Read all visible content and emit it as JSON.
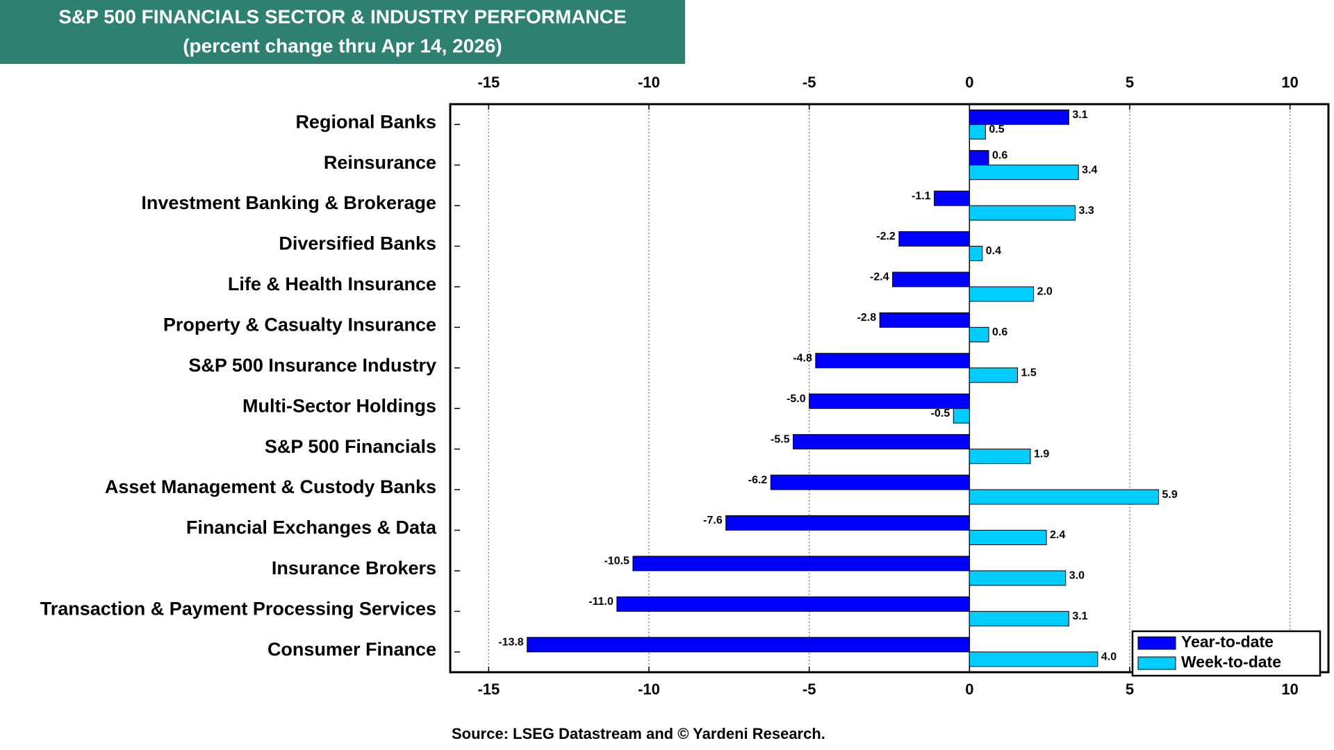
{
  "chart_data": {
    "type": "hbar",
    "title": "S&P 500 FINANCIALS SECTOR & INDUSTRY PERFORMANCE",
    "subtitle": "(percent change thru Apr 14, 2026)",
    "source": "Source: LSEG Datastream and © Yardeni Research.",
    "categories": [
      "Regional Banks",
      "Reinsurance",
      "Investment Banking & Brokerage",
      "Diversified Banks",
      "Life & Health Insurance",
      "Property & Casualty Insurance",
      "S&P 500 Insurance Industry",
      "Multi-Sector Holdings",
      "S&P 500 Financials",
      "Asset Management & Custody Banks",
      "Financial Exchanges & Data",
      "Insurance Brokers",
      "Transaction & Payment Processing Services",
      "Consumer Finance"
    ],
    "series": [
      {
        "name": "Year-to-date",
        "color": "#0000ff",
        "values": [
          3.1,
          0.6,
          -1.1,
          -2.2,
          -2.4,
          -2.8,
          -4.8,
          -5.0,
          -5.5,
          -6.2,
          -7.6,
          -10.5,
          -11.0,
          -13.8
        ],
        "value_labels": [
          "3.1",
          "0.6",
          "-1.1",
          "-2.2",
          "-2.4",
          "-2.8",
          "-4.8",
          "-5.0",
          "-5.5",
          "-6.2",
          "-7.6",
          "-10.5",
          "-11.0",
          "-13.8"
        ]
      },
      {
        "name": "Week-to-date",
        "color": "#00ccff",
        "values": [
          0.5,
          3.4,
          3.3,
          0.4,
          2.0,
          0.6,
          1.5,
          -0.5,
          1.9,
          5.9,
          2.4,
          3.0,
          3.1,
          4.0
        ],
        "value_labels": [
          "0.5",
          "3.4",
          "3.3",
          "0.4",
          "2.0",
          "0.6",
          "1.5",
          "-0.5",
          "1.9",
          "5.9",
          "2.4",
          "3.0",
          "3.1",
          "4.0"
        ]
      }
    ],
    "xlim": [
      -16.2,
      11.2
    ],
    "xticks": [
      -15,
      -10,
      -5,
      0,
      5,
      10
    ],
    "grid": true,
    "legend": "lower right"
  }
}
